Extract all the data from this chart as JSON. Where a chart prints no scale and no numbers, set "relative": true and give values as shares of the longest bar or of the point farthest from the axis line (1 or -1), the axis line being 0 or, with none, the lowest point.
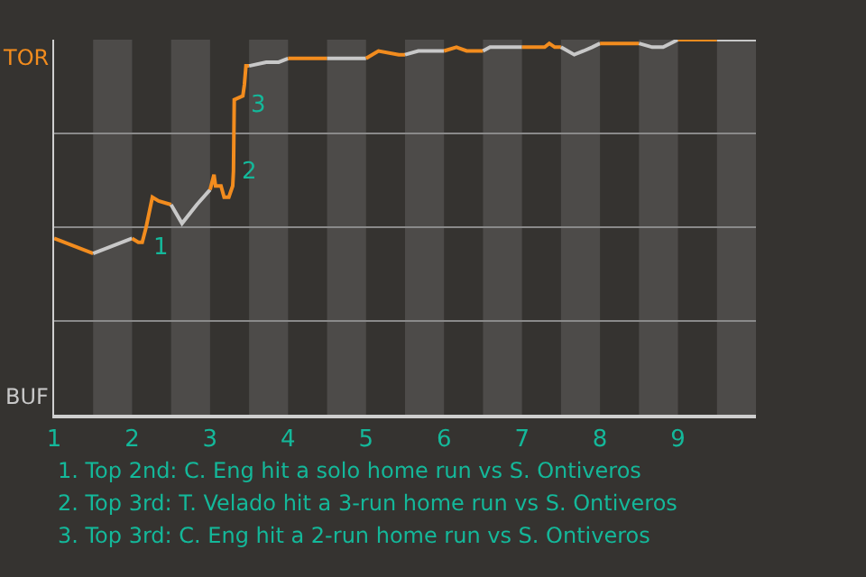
{
  "chart_data": {
    "type": "line",
    "relative": true,
    "xlim": [
      1,
      10
    ],
    "xticks": [
      1,
      2,
      3,
      4,
      5,
      6,
      7,
      8,
      9
    ],
    "grid": "y",
    "series": [
      {
        "color": "#f28c1e",
        "x": [
          1,
          1.5
        ],
        "values": [
          0.47,
          0.43
        ]
      },
      {
        "color": "#c8c8c8",
        "x": [
          1.5,
          2
        ],
        "values": [
          0.43,
          0.47
        ]
      },
      {
        "color": "#f28c1e",
        "x": [
          2,
          2.08,
          2.13,
          2.18,
          2.26,
          2.34,
          2.5
        ],
        "values": [
          0.47,
          0.46,
          0.46,
          0.5,
          0.58,
          0.57,
          0.56
        ]
      },
      {
        "color": "#c8c8c8",
        "x": [
          2.5,
          2.64,
          2.83,
          3
        ],
        "values": [
          0.56,
          0.51,
          0.56,
          0.6
        ]
      },
      {
        "color": "#f28c1e",
        "x": [
          3,
          3.05,
          3.07,
          3.14,
          3.18,
          3.24,
          3.29,
          3.3,
          3.31,
          3.42,
          3.44,
          3.46,
          3.5
        ],
        "values": [
          0.6,
          0.64,
          0.61,
          0.61,
          0.58,
          0.58,
          0.61,
          0.65,
          0.84,
          0.85,
          0.88,
          0.93,
          0.93
        ]
      },
      {
        "color": "#c8c8c8",
        "x": [
          3.5,
          3.72,
          3.88,
          4
        ],
        "values": [
          0.93,
          0.94,
          0.94,
          0.95
        ]
      },
      {
        "color": "#f28c1e",
        "x": [
          4,
          4.23,
          4.29,
          4.5
        ],
        "values": [
          0.95,
          0.95,
          0.95,
          0.95
        ]
      },
      {
        "color": "#c8c8c8",
        "x": [
          4.5,
          4.64,
          5
        ],
        "values": [
          0.95,
          0.95,
          0.95
        ]
      },
      {
        "color": "#f28c1e",
        "x": [
          5,
          5.16,
          5.42,
          5.5
        ],
        "values": [
          0.95,
          0.97,
          0.96,
          0.96
        ]
      },
      {
        "color": "#c8c8c8",
        "x": [
          5.5,
          5.67,
          5.79,
          5.88,
          6
        ],
        "values": [
          0.96,
          0.97,
          0.97,
          0.97,
          0.97
        ]
      },
      {
        "color": "#f28c1e",
        "x": [
          6,
          6.16,
          6.29,
          6.42,
          6.5
        ],
        "values": [
          0.97,
          0.98,
          0.97,
          0.97,
          0.97
        ]
      },
      {
        "color": "#c8c8c8",
        "x": [
          6.5,
          6.59,
          6.75,
          7
        ],
        "values": [
          0.97,
          0.98,
          0.98,
          0.98
        ]
      },
      {
        "color": "#f28c1e",
        "x": [
          7,
          7.29,
          7.35,
          7.42,
          7.5
        ],
        "values": [
          0.98,
          0.98,
          0.99,
          0.98,
          0.98
        ]
      },
      {
        "color": "#c8c8c8",
        "x": [
          7.5,
          7.67,
          7.79,
          7.9,
          8
        ],
        "values": [
          0.98,
          0.96,
          0.97,
          0.98,
          0.99
        ]
      },
      {
        "color": "#f28c1e",
        "x": [
          8,
          8.5
        ],
        "values": [
          0.99,
          0.99
        ]
      },
      {
        "color": "#c8c8c8",
        "x": [
          8.5,
          8.67,
          8.81,
          9
        ],
        "values": [
          0.99,
          0.98,
          0.98,
          1
        ]
      },
      {
        "color": "#f28c1e",
        "x": [
          9,
          9.5
        ],
        "values": [
          1,
          1
        ]
      },
      {
        "color": "#c8c8c8",
        "x": [
          9.5,
          10
        ],
        "values": [
          1,
          1
        ]
      }
    ],
    "bands": [
      {
        "axis": "x",
        "from": 1.5,
        "to": 2,
        "color": "#4d4b49"
      },
      {
        "axis": "x",
        "from": 2.5,
        "to": 3,
        "color": "#4d4b49"
      },
      {
        "axis": "x",
        "from": 3.5,
        "to": 4,
        "color": "#4d4b49"
      },
      {
        "axis": "x",
        "from": 4.5,
        "to": 5,
        "color": "#4d4b49"
      },
      {
        "axis": "x",
        "from": 5.5,
        "to": 6,
        "color": "#4d4b49"
      },
      {
        "axis": "x",
        "from": 6.5,
        "to": 7,
        "color": "#4d4b49"
      },
      {
        "axis": "x",
        "from": 7.5,
        "to": 8,
        "color": "#4d4b49"
      },
      {
        "axis": "x",
        "from": 8.5,
        "to": 9,
        "color": "#4d4b49"
      },
      {
        "axis": "x",
        "from": 9.5,
        "to": 10,
        "color": "#4d4b49"
      }
    ],
    "annotations": [
      "TOR",
      "BUF",
      {
        "text": "1",
        "x": 2.18,
        "y": 0.5
      },
      {
        "text": "2",
        "x": 3.31,
        "y": 0.7
      },
      {
        "text": "3",
        "x": 3.44,
        "y": 0.88
      },
      "1. Top 2nd: C. Eng hit a solo home run vs S. Ontiveros",
      "2. Top 3rd: T. Velado hit a 3-run home run vs S. Ontiveros",
      "3. Top 3rd: C. Eng hit a 2-run home run vs S. Ontiveros"
    ]
  }
}
